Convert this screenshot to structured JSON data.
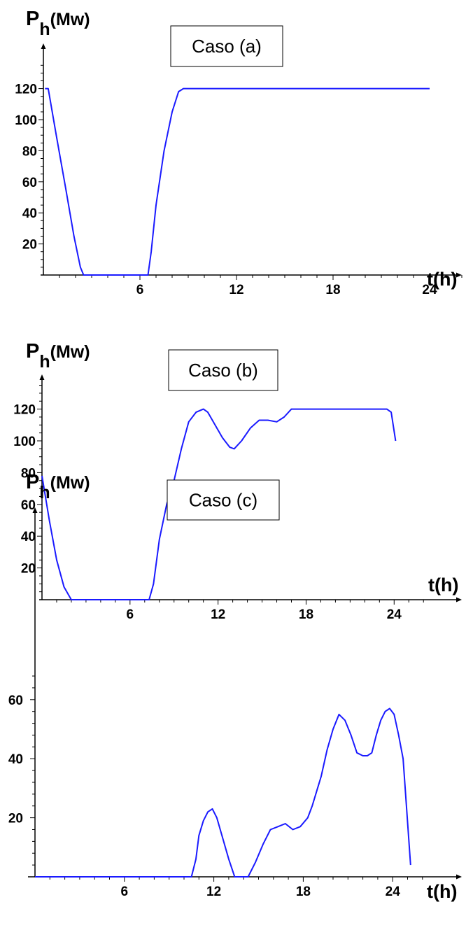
{
  "chart_data": [
    {
      "type": "line",
      "title": "Caso (a)",
      "ylabel_main": "P",
      "ylabel_sub": "h",
      "ylabel_unit": "(Mw)",
      "xlabel": "t(h)",
      "xticks": [
        "6",
        "12",
        "18",
        "24"
      ],
      "xtick_values": [
        6,
        12,
        18,
        24
      ],
      "yticks": [
        "20",
        "40",
        "60",
        "80",
        "100",
        "120"
      ],
      "ytick_values": [
        20,
        40,
        60,
        80,
        100,
        120
      ],
      "xlim": [
        0,
        26
      ],
      "ylim": [
        0,
        136
      ],
      "series": [
        {
          "x": [
            0.1,
            0.3,
            0.8,
            1.4,
            1.9,
            2.3,
            2.5,
            6.2,
            6.5,
            6.7,
            7.0,
            7.5,
            8.0,
            8.4,
            8.7,
            9.0,
            24.0
          ],
          "y": [
            120,
            120,
            90,
            55,
            25,
            5,
            0,
            0,
            0,
            15,
            45,
            80,
            105,
            118,
            120,
            120,
            120
          ]
        }
      ]
    },
    {
      "type": "line",
      "title": "Caso (b)",
      "ylabel_main": "P",
      "ylabel_sub": "h",
      "ylabel_unit": "(Mw)",
      "xlabel": "t(h)",
      "xticks": [
        "6",
        "12",
        "18",
        "24"
      ],
      "xtick_values": [
        6,
        12,
        18,
        24
      ],
      "yticks": [
        "20",
        "40",
        "60",
        "80",
        "100",
        "120"
      ],
      "ytick_values": [
        20,
        40,
        60,
        80,
        100,
        120
      ],
      "xlim": [
        0,
        26
      ],
      "ylim": [
        0,
        136
      ],
      "series": [
        {
          "x": [
            0,
            0.5,
            1.0,
            1.5,
            2.0,
            7.3,
            7.6,
            8.0,
            8.5,
            9.0,
            9.5,
            10.0,
            10.5,
            11.0,
            11.3,
            11.8,
            12.3,
            12.8,
            13.1,
            13.6,
            14.2,
            14.8,
            15.4,
            16.0,
            16.5,
            17.0,
            17.5,
            18.0,
            23.5,
            23.8,
            24.1
          ],
          "y": [
            78,
            50,
            25,
            8,
            0,
            0,
            10,
            38,
            60,
            75,
            95,
            112,
            118,
            120,
            118,
            110,
            102,
            96,
            95,
            100,
            108,
            113,
            113,
            112,
            115,
            120,
            120,
            120,
            120,
            118,
            100
          ]
        }
      ]
    },
    {
      "type": "line",
      "title": "Caso (c)",
      "ylabel_main": "P",
      "ylabel_sub": "h",
      "ylabel_unit": "(Mw)",
      "xlabel": "t(h)",
      "xticks": [
        "6",
        "12",
        "18",
        "24"
      ],
      "xtick_values": [
        6,
        12,
        18,
        24
      ],
      "yticks": [
        "20",
        "40",
        "60"
      ],
      "ytick_values": [
        20,
        40,
        60
      ],
      "xlim": [
        0,
        26
      ],
      "ylim": [
        0,
        72
      ],
      "series": [
        {
          "x": [
            0,
            10.5,
            10.8,
            11.0,
            11.3,
            11.6,
            11.9,
            12.2,
            12.6,
            13.0,
            13.4,
            13.8,
            14.3,
            14.8,
            15.3,
            15.8,
            16.3,
            16.8,
            17.3,
            17.8,
            18.3,
            18.6,
            18.9,
            19.2,
            19.6,
            20.0,
            20.4,
            20.8,
            21.2,
            21.6,
            22.0,
            22.3,
            22.6,
            22.9,
            23.2,
            23.5,
            23.8,
            24.1,
            24.4,
            24.7,
            25.2
          ],
          "y": [
            0,
            0,
            6,
            14,
            19,
            22,
            23,
            20,
            13,
            6,
            0,
            0,
            0,
            5,
            11,
            16,
            17,
            18,
            16,
            17,
            20,
            24,
            29,
            34,
            43,
            50,
            55,
            53,
            48,
            42,
            41,
            41,
            42,
            48,
            53,
            56,
            57,
            55,
            48,
            40,
            4
          ]
        }
      ]
    }
  ]
}
